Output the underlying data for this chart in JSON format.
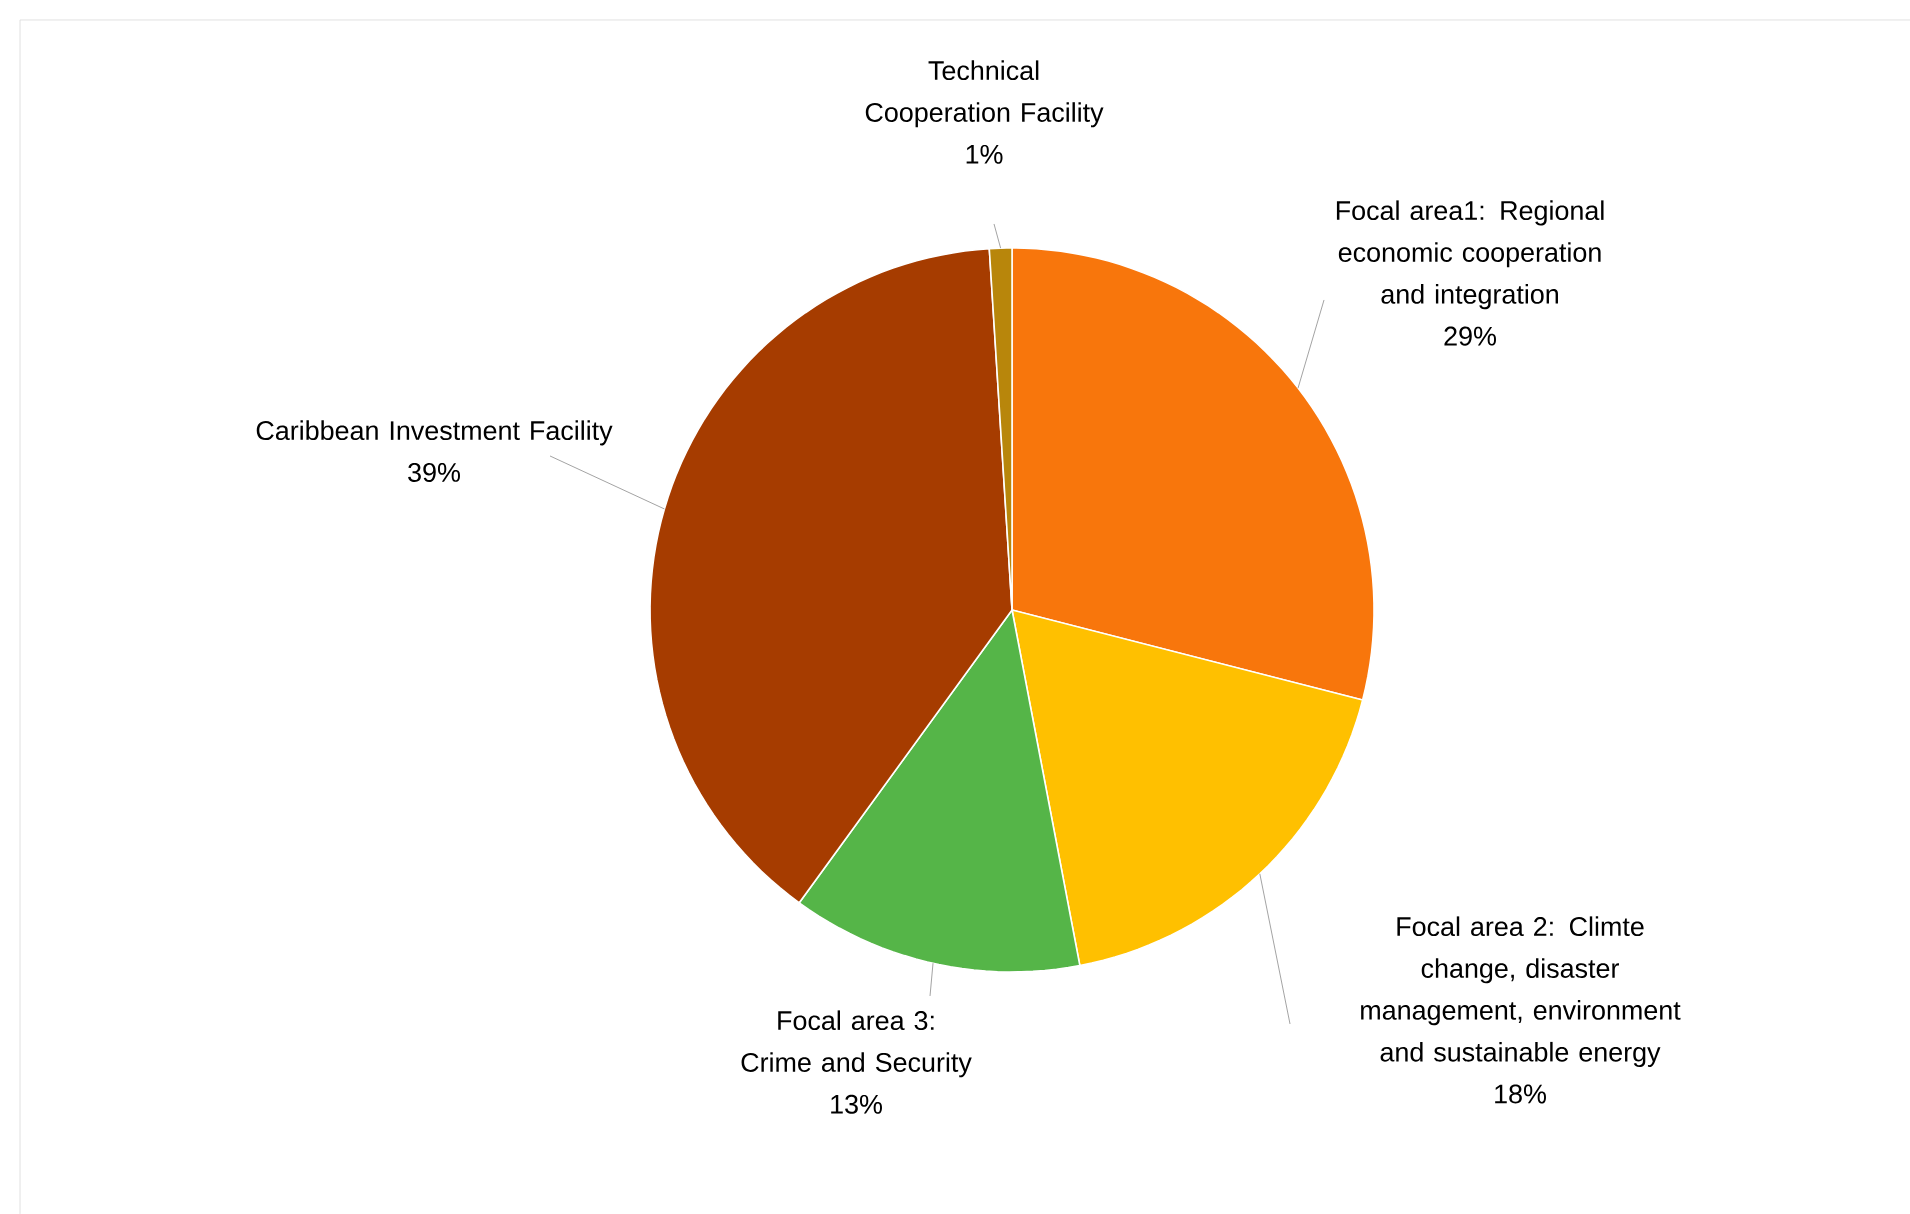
{
  "chart_data": {
    "type": "pie",
    "categories": [
      "Focal area1: Regional economic cooperation and integration",
      "Focal area 2: Climte change, disaster management, environment and sustainable energy",
      "Focal area 3: Crime and Security",
      "Caribbean Investment Facility",
      "Technical Cooperation Facility"
    ],
    "values": [
      29,
      18,
      13,
      39,
      1
    ],
    "value_labels": [
      "29%",
      "18%",
      "13%",
      "39%",
      "1%"
    ],
    "colors": [
      "#f8760c",
      "#ffc000",
      "#55b548",
      "#a63c00",
      "#b8860b"
    ]
  }
}
